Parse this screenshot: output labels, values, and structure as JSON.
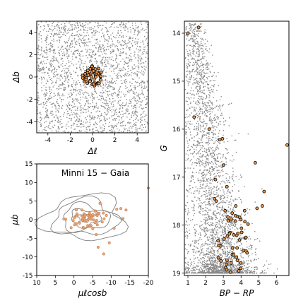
{
  "figure_title": "",
  "chart_data": [
    {
      "type": "scatter",
      "panel": "sky-position",
      "xlabel": "Δℓ",
      "ylabel": "Δb",
      "xlim": [
        -5,
        5
      ],
      "ylim": [
        -5,
        5
      ],
      "x_ticks": [
        -4,
        -2,
        0,
        2,
        4
      ],
      "y_ticks": [
        -4,
        -2,
        0,
        2,
        4
      ],
      "grid": false,
      "series": [
        {
          "role": "field",
          "color": "#8a8a8a",
          "count": 2200,
          "distribution": "uniform over full field"
        },
        {
          "role": "members",
          "color": "#e8954a",
          "edge_color": "#000000",
          "count": 55,
          "center": [
            0.0,
            0.1
          ],
          "radius": 0.9
        }
      ]
    },
    {
      "type": "scatter",
      "panel": "proper-motion",
      "title": "Minni 15  −  Gaia",
      "xlabel": "μℓcosb",
      "ylabel": "μb",
      "xlim": [
        10,
        -20
      ],
      "ylim": [
        -15,
        15
      ],
      "x_ticks": [
        10,
        5,
        0,
        -5,
        -10,
        -15,
        -20
      ],
      "y_ticks": [
        -15,
        -10,
        -5,
        0,
        5,
        10,
        15
      ],
      "grid": false,
      "contours": {
        "color": "#808080",
        "center": [
          -3.0,
          0.5
        ],
        "levels": 5
      },
      "series": [
        {
          "role": "members",
          "color": "#e8a878",
          "edge_color": "#c07040",
          "count": 55,
          "center": [
            -3.0,
            0.5
          ]
        },
        {
          "role": "outliers",
          "points": [
            [
              -20.0,
              8.5
            ],
            [
              -14.0,
              2.6
            ],
            [
              -11.5,
              2.8
            ],
            [
              -8.0,
              -9.2
            ],
            [
              -9.5,
              -6.2
            ],
            [
              -6.5,
              -7.4
            ],
            [
              2.7,
              0.2
            ],
            [
              -13.2,
              0.3
            ],
            [
              -10.8,
              -2.3
            ],
            [
              -7.0,
              4.4
            ],
            [
              -12.6,
              3.0
            ],
            [
              -6.0,
              -4.0
            ]
          ]
        }
      ]
    },
    {
      "type": "scatter",
      "panel": "color-magnitude",
      "xlabel": "BP − RP",
      "ylabel": "G",
      "xlim": [
        0.8,
        6.7
      ],
      "ylim": [
        19.05,
        13.75
      ],
      "x_ticks": [
        1,
        2,
        3,
        4,
        5,
        6
      ],
      "y_ticks": [
        14,
        15,
        16,
        17,
        18,
        19
      ],
      "grid": false,
      "series": [
        {
          "role": "field",
          "color": "#8a8a8a",
          "count": 3200
        },
        {
          "role": "members",
          "color": "#e8954a",
          "edge_color": "#000000",
          "points": [
            [
              1.0,
              14.0
            ],
            [
              1.6,
              13.88
            ],
            [
              1.35,
              15.75
            ],
            [
              2.2,
              16.0
            ],
            [
              2.8,
              16.22
            ],
            [
              2.95,
              16.2
            ],
            [
              3.0,
              16.75
            ],
            [
              2.55,
              17.05
            ],
            [
              3.2,
              17.2
            ],
            [
              4.8,
              16.7
            ],
            [
              6.6,
              16.33
            ],
            [
              5.3,
              17.3
            ],
            [
              4.9,
              17.65
            ],
            [
              5.2,
              17.6
            ],
            [
              4.2,
              17.7
            ],
            [
              3.7,
              17.6
            ],
            [
              3.5,
              17.75
            ],
            [
              3.1,
              17.7
            ],
            [
              2.5,
              17.45
            ],
            [
              2.6,
              17.5
            ],
            [
              3.8,
              17.82
            ]
          ],
          "extra_count": 45
        }
      ]
    }
  ]
}
